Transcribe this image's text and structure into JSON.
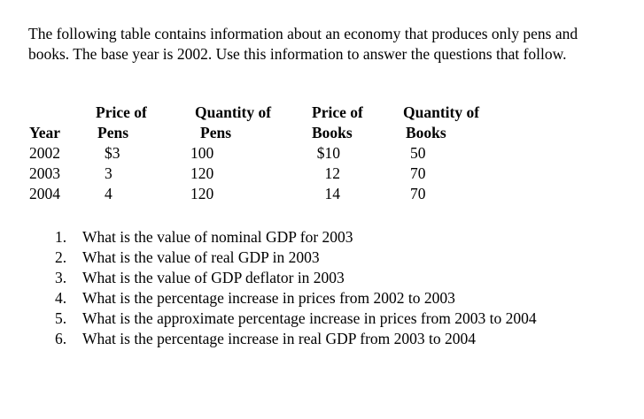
{
  "page": {
    "intro_line1": "The following table contains information about an economy that produces only pens and",
    "intro_line2": "books. The base year is 2002. Use this information to answer the questions that follow."
  },
  "table": {
    "header": {
      "year": "Year",
      "price_pens_1": "Price of",
      "price_pens_2": "Pens",
      "qty_pens_1": "Quantity of",
      "qty_pens_2": "Pens",
      "price_books_1": "Price of",
      "price_books_2": "Books",
      "qty_books_1": "Quantity of",
      "qty_books_2": "Books"
    },
    "rows": [
      {
        "year": "2002",
        "price_pens": "$3",
        "qty_pens": "100",
        "price_books": "$10",
        "qty_books": "50"
      },
      {
        "year": "2003",
        "price_pens": "3",
        "qty_pens": "120",
        "price_books": "12",
        "qty_books": "70"
      },
      {
        "year": "2004",
        "price_pens": "4",
        "qty_pens": "120",
        "price_books": "14",
        "qty_books": "70"
      }
    ]
  },
  "questions": [
    {
      "num": "1.",
      "text": "What is the value of nominal GDP for 2003"
    },
    {
      "num": "2.",
      "text": "What is the value of real GDP in 2003"
    },
    {
      "num": "3.",
      "text": "What is the value of GDP deflator in 2003"
    },
    {
      "num": "4.",
      "text": "What is the percentage increase in prices from 2002 to 2003"
    },
    {
      "num": "5.",
      "text": "What is the approximate percentage increase in prices from 2003 to 2004"
    },
    {
      "num": "6.",
      "text": "What is the percentage increase in real GDP from 2003 to 2004"
    }
  ],
  "colors": {
    "text": "#000000",
    "background": "#ffffff"
  }
}
